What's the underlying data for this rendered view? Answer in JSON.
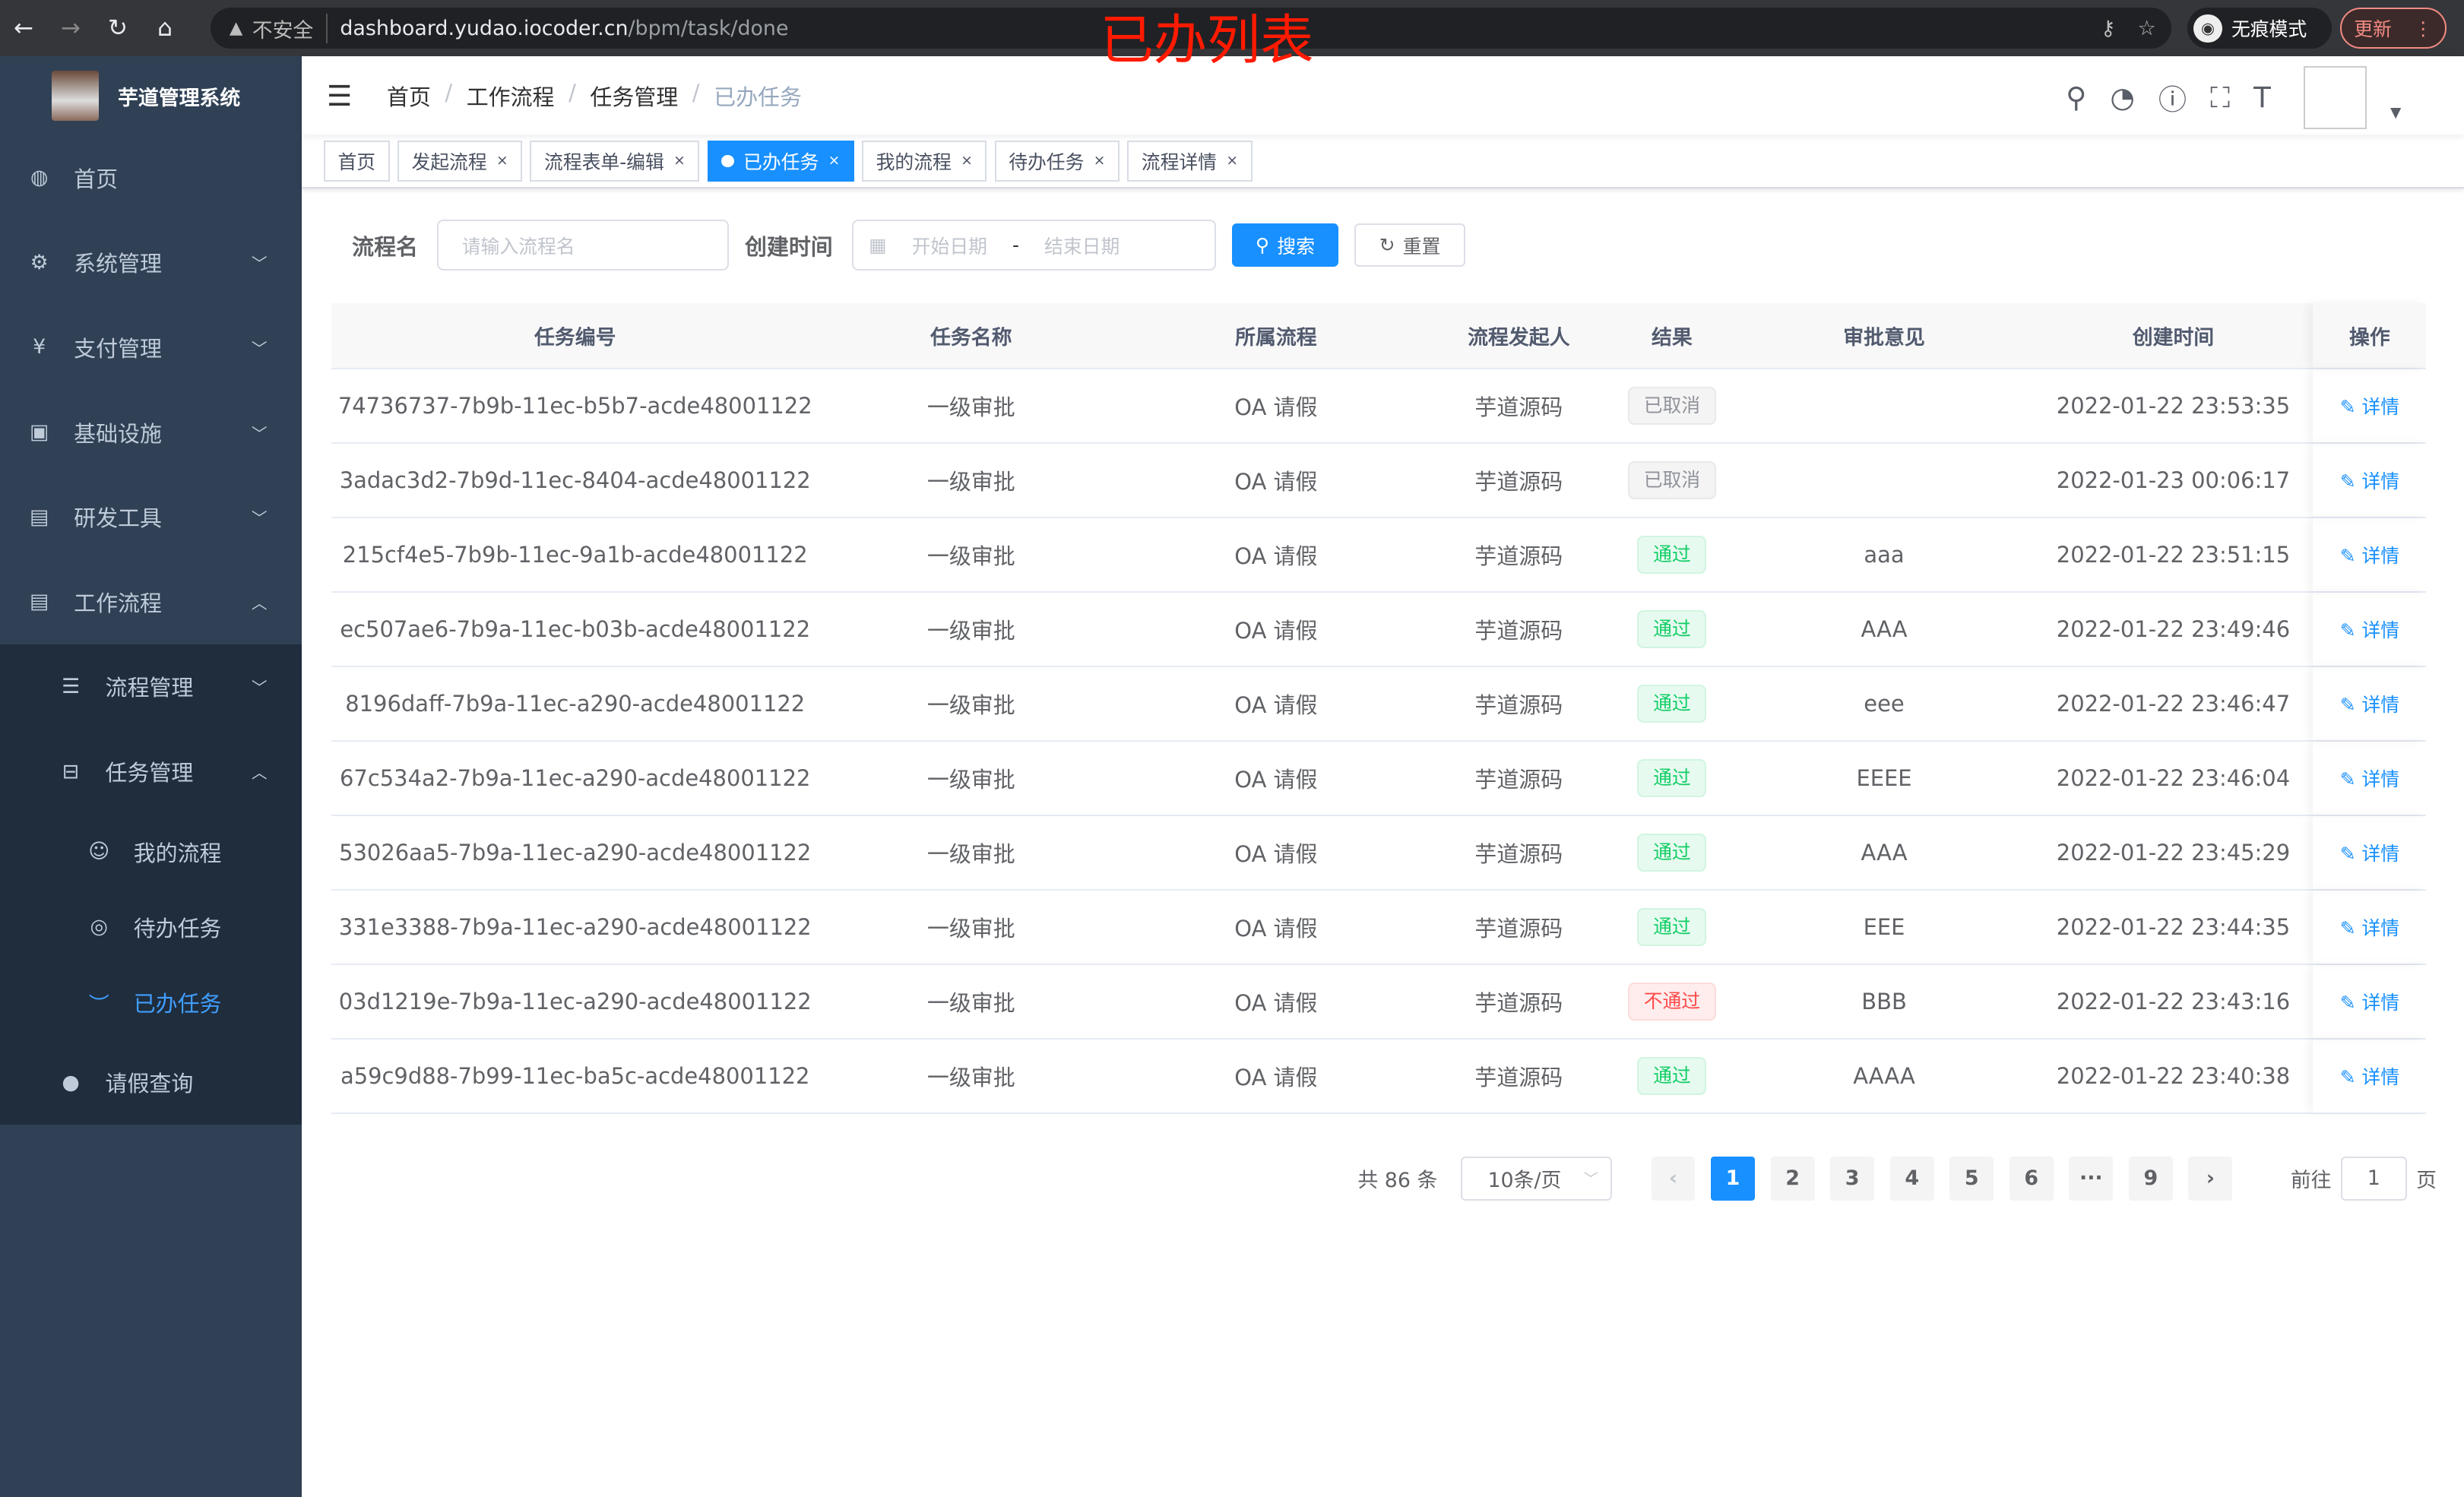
{
  "browser": {
    "insecure": "不安全",
    "url_host": "dashboard.yudao.iocoder.cn",
    "url_path": "/bpm/task/done",
    "incognito": "无痕模式",
    "update": "更新"
  },
  "annotation": "已办列表",
  "sidebar": {
    "title": "芋道管理系统",
    "items": [
      {
        "label": "首页",
        "icon": "dashboard-icon"
      },
      {
        "label": "系统管理",
        "icon": "gear-icon"
      },
      {
        "label": "支付管理",
        "icon": "yen-icon"
      },
      {
        "label": "基础设施",
        "icon": "monitor-icon"
      },
      {
        "label": "研发工具",
        "icon": "toolbox-icon"
      },
      {
        "label": "工作流程",
        "icon": "toolbox-icon"
      }
    ],
    "workflow": [
      {
        "label": "流程管理"
      },
      {
        "label": "任务管理"
      }
    ],
    "task": [
      {
        "label": "我的流程"
      },
      {
        "label": "待办任务"
      },
      {
        "label": "已办任务"
      }
    ],
    "leave": "请假查询"
  },
  "breadcrumb": [
    "首页",
    "工作流程",
    "任务管理",
    "已办任务"
  ],
  "tags": [
    {
      "label": "首页"
    },
    {
      "label": "发起流程"
    },
    {
      "label": "流程表单-编辑"
    },
    {
      "label": "已办任务"
    },
    {
      "label": "我的流程"
    },
    {
      "label": "待办任务"
    },
    {
      "label": "流程详情"
    }
  ],
  "filter": {
    "name_label": "流程名",
    "name_placeholder": "请输入流程名",
    "time_label": "创建时间",
    "start_placeholder": "开始日期",
    "sep": "-",
    "end_placeholder": "结束日期",
    "search": "搜索",
    "reset": "重置"
  },
  "table": {
    "headers": [
      "任务编号",
      "任务名称",
      "所属流程",
      "流程发起人",
      "结果",
      "审批意见",
      "创建时间",
      "操作"
    ],
    "rows": [
      [
        "74736737-7b9b-11ec-b5b7-acde48001122",
        "一级审批",
        "OA 请假",
        "芋道源码",
        "已取消",
        "",
        "2022-01-22 23:53:35",
        "详情"
      ],
      [
        "3adac3d2-7b9d-11ec-8404-acde48001122",
        "一级审批",
        "OA 请假",
        "芋道源码",
        "已取消",
        "",
        "2022-01-23 00:06:17",
        "详情"
      ],
      [
        "215cf4e5-7b9b-11ec-9a1b-acde48001122",
        "一级审批",
        "OA 请假",
        "芋道源码",
        "通过",
        "aaa",
        "2022-01-22 23:51:15",
        "详情"
      ],
      [
        "ec507ae6-7b9a-11ec-b03b-acde48001122",
        "一级审批",
        "OA 请假",
        "芋道源码",
        "通过",
        "AAA",
        "2022-01-22 23:49:46",
        "详情"
      ],
      [
        "8196daff-7b9a-11ec-a290-acde48001122",
        "一级审批",
        "OA 请假",
        "芋道源码",
        "通过",
        "eee",
        "2022-01-22 23:46:47",
        "详情"
      ],
      [
        "67c534a2-7b9a-11ec-a290-acde48001122",
        "一级审批",
        "OA 请假",
        "芋道源码",
        "通过",
        "EEEE",
        "2022-01-22 23:46:04",
        "详情"
      ],
      [
        "53026aa5-7b9a-11ec-a290-acde48001122",
        "一级审批",
        "OA 请假",
        "芋道源码",
        "通过",
        "AAA",
        "2022-01-22 23:45:29",
        "详情"
      ],
      [
        "331e3388-7b9a-11ec-a290-acde48001122",
        "一级审批",
        "OA 请假",
        "芋道源码",
        "通过",
        "EEE",
        "2022-01-22 23:44:35",
        "详情"
      ],
      [
        "03d1219e-7b9a-11ec-a290-acde48001122",
        "一级审批",
        "OA 请假",
        "芋道源码",
        "不通过",
        "BBB",
        "2022-01-22 23:43:16",
        "详情"
      ],
      [
        "a59c9d88-7b99-11ec-ba5c-acde48001122",
        "一级审批",
        "OA 请假",
        "芋道源码",
        "通过",
        "AAAA",
        "2022-01-22 23:40:38",
        "详情"
      ]
    ]
  },
  "pagination": {
    "total": "共 86 条",
    "page_size": "10条/页",
    "pages": [
      "1",
      "2",
      "3",
      "4",
      "5",
      "6",
      "···",
      "9"
    ],
    "current": "1",
    "goto_label": "前往",
    "goto_value": "1",
    "page_suffix": "页"
  }
}
